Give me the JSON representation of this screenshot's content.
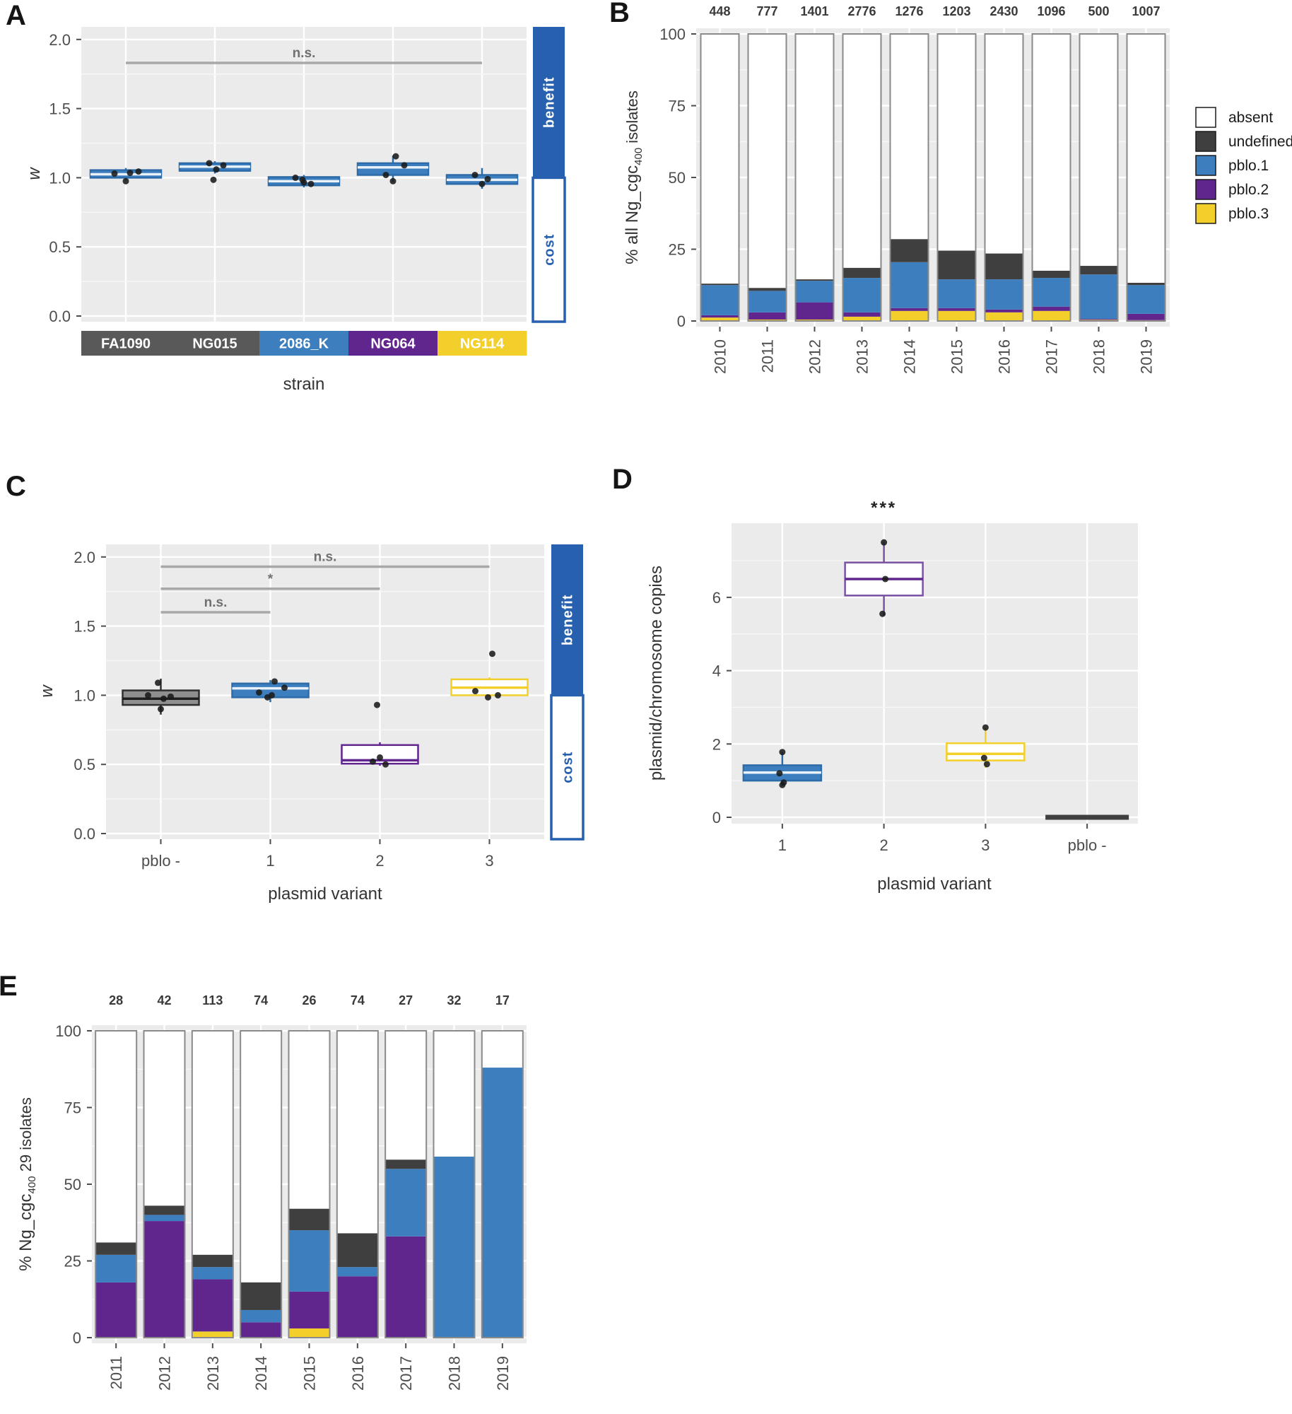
{
  "figure": {
    "panels": {
      "a": "A",
      "b": "B",
      "c": "C",
      "d": "D",
      "e": "E"
    }
  },
  "colors": {
    "blue": "#3D7EBF",
    "blue_stroke": "#2E6CA9",
    "purple": "#61258E",
    "purple_stroke": "#7B52A3",
    "yellow": "#F2CF2A",
    "dark_gray": "#3F3F3F",
    "strain_gray": "#595959",
    "benefit_blue": "#2660AE",
    "plot_bg": "#EBEBEB",
    "bar_outline": "#8A8A8A",
    "sig_line": "#A8A8A8"
  },
  "chart_data": [
    {
      "id": "A",
      "type": "box",
      "ylabel": "w",
      "ylabel_italic": true,
      "xlabel": "strain",
      "ylim": [
        0,
        2.05
      ],
      "yticks": [
        {
          "v": 0,
          "label": "0.0"
        },
        {
          "v": 0.5,
          "label": "0.5"
        },
        {
          "v": 1,
          "label": "1.0"
        },
        {
          "v": 1.5,
          "label": "1.5"
        },
        {
          "v": 2,
          "label": "2.0"
        }
      ],
      "categories": [
        {
          "label": "FA1090",
          "bar_color": "#595959"
        },
        {
          "label": "NG015",
          "bar_color": "#595959"
        },
        {
          "label": "2086_K",
          "bar_color": "#3D7EBF"
        },
        {
          "label": "NG064",
          "bar_color": "#61258E"
        },
        {
          "label": "NG114",
          "bar_color": "#F2CF2A"
        }
      ],
      "boxes": [
        {
          "low": 0.98,
          "q1": 1.0,
          "median": 1.025,
          "q3": 1.055,
          "high": 1.07,
          "fill": "#3D7EBF",
          "stroke": "#2E6CA9",
          "median_color": "#E8F0F8"
        },
        {
          "low": 1.03,
          "q1": 1.05,
          "median": 1.08,
          "q3": 1.105,
          "high": 1.12,
          "fill": "#3D7EBF",
          "stroke": "#2E6CA9",
          "median_color": "#E8F0F8"
        },
        {
          "low": 0.93,
          "q1": 0.945,
          "median": 0.975,
          "q3": 1.005,
          "high": 1.02,
          "fill": "#3D7EBF",
          "stroke": "#2E6CA9",
          "median_color": "#E8F0F8"
        },
        {
          "low": 0.97,
          "q1": 1.02,
          "median": 1.075,
          "q3": 1.105,
          "high": 1.16,
          "fill": "#3D7EBF",
          "stroke": "#2E6CA9",
          "median_color": "#E8F0F8"
        },
        {
          "low": 0.92,
          "q1": 0.955,
          "median": 0.985,
          "q3": 1.02,
          "high": 1.07,
          "fill": "#3D7EBF",
          "stroke": "#2E6CA9",
          "median_color": "#E8F0F8"
        }
      ],
      "points": [
        [
          [
            -16,
            1.03
          ],
          [
            6,
            1.035
          ],
          [
            0,
            0.975
          ],
          [
            18,
            1.045
          ]
        ],
        [
          [
            -8,
            1.105
          ],
          [
            12,
            1.09
          ],
          [
            2,
            1.06
          ],
          [
            -2,
            0.985
          ]
        ],
        [
          [
            -12,
            1.0
          ],
          [
            0,
            0.965
          ],
          [
            10,
            0.955
          ],
          [
            -2,
            0.985
          ]
        ],
        [
          [
            4,
            1.155
          ],
          [
            16,
            1.09
          ],
          [
            -10,
            1.02
          ],
          [
            0,
            0.975
          ]
        ],
        [
          [
            -10,
            1.02
          ],
          [
            8,
            0.99
          ],
          [
            0,
            0.955
          ]
        ]
      ],
      "significance": [
        {
          "from": 0,
          "to": 4,
          "y": 1.83,
          "label": "n.s."
        }
      ],
      "sidebar": {
        "top_label": "benefit",
        "bottom_label": "cost",
        "split": 1.0
      }
    },
    {
      "id": "B",
      "type": "bar",
      "stacked": true,
      "ylabel_parts": [
        "% all Ng_cgc",
        "400",
        " isolates"
      ],
      "ylim": [
        0,
        100
      ],
      "yticks": [
        {
          "v": 0,
          "label": "0"
        },
        {
          "v": 25,
          "label": "25"
        },
        {
          "v": 50,
          "label": "50"
        },
        {
          "v": 75,
          "label": "75"
        },
        {
          "v": 100,
          "label": "100"
        }
      ],
      "categories": [
        "2010",
        "2011",
        "2012",
        "2013",
        "2014",
        "2015",
        "2016",
        "2017",
        "2018",
        "2019"
      ],
      "counts": [
        "448",
        "777",
        "1401",
        "2776",
        "1276",
        "1203",
        "2430",
        "1096",
        "500",
        "1007"
      ],
      "series": [
        {
          "name": "pblo.3",
          "color": "#F2CF2A",
          "values": [
            1.2,
            0.5,
            0.5,
            1.5,
            3.5,
            3.5,
            3,
            3.5,
            0.4,
            0.3
          ]
        },
        {
          "name": "pblo.2",
          "color": "#61258E",
          "values": [
            0.8,
            2.5,
            6,
            1.5,
            1,
            1,
            1,
            1.5,
            0.3,
            2.2
          ]
        },
        {
          "name": "pblo.1",
          "color": "#3D7EBF",
          "values": [
            10.5,
            7.5,
            7.5,
            12,
            16,
            10,
            10.5,
            10,
            15.5,
            10
          ]
        },
        {
          "name": "undefined",
          "color": "#3F3F3F",
          "values": [
            0.5,
            1,
            0.5,
            3.5,
            8,
            10,
            9,
            2.5,
            3,
            0.8
          ]
        }
      ],
      "absent_name": "absent",
      "legend": [
        {
          "label": "absent",
          "color": "#FFFFFF"
        },
        {
          "label": "undefined",
          "color": "#3F3F3F"
        },
        {
          "label": "pblo.1",
          "color": "#3D7EBF"
        },
        {
          "label": "pblo.2",
          "color": "#61258E"
        },
        {
          "label": "pblo.3",
          "color": "#F2CF2A"
        }
      ]
    },
    {
      "id": "C",
      "type": "box",
      "ylabel": "w",
      "ylabel_italic": true,
      "xlabel": "plasmid variant",
      "ylim": [
        0,
        2.05
      ],
      "yticks": [
        {
          "v": 0,
          "label": "0.0"
        },
        {
          "v": 0.5,
          "label": "0.5"
        },
        {
          "v": 1,
          "label": "1.0"
        },
        {
          "v": 1.5,
          "label": "1.5"
        },
        {
          "v": 2,
          "label": "2.0"
        }
      ],
      "categories": [
        {
          "label": "pblo -"
        },
        {
          "label": "1"
        },
        {
          "label": "2"
        },
        {
          "label": "3"
        }
      ],
      "boxes": [
        {
          "low": 0.86,
          "q1": 0.93,
          "median": 0.975,
          "q3": 1.035,
          "high": 1.12,
          "fill": "#8F8F8F",
          "stroke": "#2F2F2F",
          "median_color": "#1F1F1F"
        },
        {
          "low": 0.95,
          "q1": 0.985,
          "median": 1.05,
          "q3": 1.085,
          "high": 1.11,
          "fill": "#3D7EBF",
          "stroke": "#2E6CA9",
          "median_color": "#E8F0F8"
        },
        {
          "low": 0.49,
          "q1": 0.505,
          "median": 0.53,
          "q3": 0.64,
          "high": 0.66,
          "fill": "#FFFFFF",
          "stroke": "#61258E",
          "median_color": "#61258E"
        },
        {
          "low": 0.99,
          "q1": 1.0,
          "median": 1.055,
          "q3": 1.115,
          "high": 1.13,
          "fill": "#FFFFFF",
          "stroke": "#F2CF2A",
          "median_color": "#F2CF2A"
        }
      ],
      "points": [
        [
          [
            -4,
            1.09
          ],
          [
            -18,
            1.0
          ],
          [
            4,
            0.975
          ],
          [
            0,
            0.9
          ],
          [
            14,
            0.99
          ]
        ],
        [
          [
            6,
            1.1
          ],
          [
            -16,
            1.02
          ],
          [
            2,
            1.0
          ],
          [
            20,
            1.055
          ],
          [
            -4,
            0.985
          ]
        ],
        [
          [
            -4,
            0.93
          ],
          [
            0,
            0.55
          ],
          [
            -10,
            0.52
          ],
          [
            8,
            0.5
          ]
        ],
        [
          [
            -20,
            1.03
          ],
          [
            -2,
            0.985
          ],
          [
            12,
            1.0
          ],
          [
            4,
            1.3
          ]
        ]
      ],
      "significance": [
        {
          "from": 0,
          "to": 3,
          "y": 1.93,
          "label": "n.s."
        },
        {
          "from": 0,
          "to": 2,
          "y": 1.77,
          "label": "*"
        },
        {
          "from": 0,
          "to": 1,
          "y": 1.6,
          "label": "n.s."
        }
      ],
      "sidebar": {
        "top_label": "benefit",
        "bottom_label": "cost",
        "split": 1.0
      }
    },
    {
      "id": "D",
      "type": "box",
      "ylabel": "plasmid/chromosome copies",
      "ylabel_italic": false,
      "xlabel": "plasmid variant",
      "annotation": "***",
      "annotation_over": 1,
      "ylim": [
        0,
        7.85
      ],
      "yticks": [
        {
          "v": 0,
          "label": "0"
        },
        {
          "v": 2,
          "label": "2"
        },
        {
          "v": 4,
          "label": "4"
        },
        {
          "v": 6,
          "label": "6"
        }
      ],
      "categories": [
        {
          "label": "1"
        },
        {
          "label": "2"
        },
        {
          "label": "3"
        },
        {
          "label": "pblo -"
        }
      ],
      "boxes": [
        {
          "low": 0.85,
          "q1": 1.0,
          "median": 1.22,
          "q3": 1.42,
          "high": 1.78,
          "fill": "#3D7EBF",
          "stroke": "#2E6CA9",
          "median_color": "#E8F0F8"
        },
        {
          "low": 5.5,
          "q1": 6.05,
          "median": 6.5,
          "q3": 6.95,
          "high": 7.5,
          "fill": "#FFFFFF",
          "stroke": "#7B52A3",
          "median_color": "#61258E"
        },
        {
          "low": 1.35,
          "q1": 1.55,
          "median": 1.73,
          "q3": 2.02,
          "high": 2.45,
          "fill": "#FFFFFF",
          "stroke": "#F2CF2A",
          "median_color": "#F2CF2A"
        },
        {
          "flat": 0,
          "fill": "#3F3F3F"
        }
      ],
      "points": [
        [
          [
            0,
            1.78
          ],
          [
            -4,
            1.2
          ],
          [
            2,
            0.95
          ],
          [
            0,
            0.88
          ]
        ],
        [
          [
            0,
            7.5
          ],
          [
            2,
            6.5
          ],
          [
            -2,
            5.55
          ]
        ],
        [
          [
            0,
            2.45
          ],
          [
            -2,
            1.62
          ],
          [
            2,
            1.45
          ]
        ],
        []
      ]
    },
    {
      "id": "E",
      "type": "bar",
      "stacked": true,
      "ylabel_parts": [
        "% Ng_cgc",
        "400",
        " 29 isolates"
      ],
      "ylim": [
        0,
        100
      ],
      "yticks": [
        {
          "v": 0,
          "label": "0"
        },
        {
          "v": 25,
          "label": "25"
        },
        {
          "v": 50,
          "label": "50"
        },
        {
          "v": 75,
          "label": "75"
        },
        {
          "v": 100,
          "label": "100"
        }
      ],
      "categories": [
        "2011",
        "2012",
        "2013",
        "2014",
        "2015",
        "2016",
        "2017",
        "2018",
        "2019"
      ],
      "counts": [
        "28",
        "42",
        "113",
        "74",
        "26",
        "74",
        "27",
        "32",
        "17"
      ],
      "series": [
        {
          "name": "pblo.3",
          "color": "#F2CF2A",
          "values": [
            0,
            0,
            2,
            0,
            3,
            0,
            0,
            0,
            0
          ]
        },
        {
          "name": "pblo.2",
          "color": "#61258E",
          "values": [
            18,
            38,
            17,
            5,
            12,
            20,
            33,
            0,
            0
          ]
        },
        {
          "name": "pblo.1",
          "color": "#3D7EBF",
          "values": [
            9,
            2,
            4,
            4,
            20,
            3,
            22,
            59,
            88
          ]
        },
        {
          "name": "undefined",
          "color": "#3F3F3F",
          "values": [
            4,
            3,
            4,
            9,
            7,
            11,
            3,
            0,
            0
          ]
        }
      ],
      "absent_name": "absent"
    }
  ]
}
